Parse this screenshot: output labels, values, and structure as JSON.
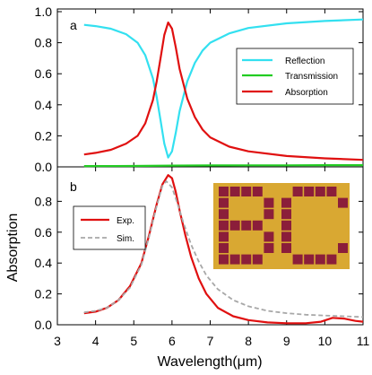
{
  "chart_data": [
    {
      "panel": "a",
      "type": "line",
      "xlim": [
        3,
        11
      ],
      "ylim": [
        0,
        1.0
      ],
      "x_ticks": [
        3,
        4,
        5,
        6,
        7,
        8,
        9,
        10,
        11
      ],
      "y_ticks": [
        "0.0",
        "0.2",
        "0.4",
        "0.6",
        "0.8",
        "1.0"
      ],
      "legend_position": "right",
      "series": [
        {
          "name": "Reflection",
          "color": "#33e0f0",
          "x": [
            3.7,
            4.0,
            4.4,
            4.8,
            5.1,
            5.3,
            5.5,
            5.6,
            5.7,
            5.8,
            5.9,
            6.0,
            6.1,
            6.2,
            6.4,
            6.6,
            6.8,
            7.0,
            7.5,
            8.0,
            9.0,
            10.0,
            11.0
          ],
          "y": [
            0.915,
            0.907,
            0.89,
            0.855,
            0.8,
            0.72,
            0.57,
            0.45,
            0.3,
            0.15,
            0.06,
            0.1,
            0.22,
            0.36,
            0.55,
            0.67,
            0.75,
            0.8,
            0.86,
            0.895,
            0.925,
            0.94,
            0.95
          ]
        },
        {
          "name": "Transmission",
          "color": "#22cc22",
          "x": [
            3.7,
            5.0,
            6.0,
            7.0,
            8.0,
            9.0,
            10.0,
            11.0
          ],
          "y": [
            0.005,
            0.006,
            0.008,
            0.009,
            0.01,
            0.01,
            0.011,
            0.011
          ]
        },
        {
          "name": "Absorption",
          "color": "#e01010",
          "x": [
            3.7,
            4.0,
            4.4,
            4.8,
            5.1,
            5.3,
            5.5,
            5.6,
            5.7,
            5.8,
            5.9,
            6.0,
            6.1,
            6.2,
            6.4,
            6.6,
            6.8,
            7.0,
            7.5,
            8.0,
            9.0,
            10.0,
            11.0
          ],
          "y": [
            0.08,
            0.09,
            0.11,
            0.15,
            0.2,
            0.28,
            0.43,
            0.55,
            0.7,
            0.85,
            0.93,
            0.89,
            0.77,
            0.63,
            0.44,
            0.32,
            0.24,
            0.19,
            0.13,
            0.1,
            0.07,
            0.055,
            0.045
          ]
        }
      ]
    },
    {
      "panel": "b",
      "type": "line",
      "xlim": [
        3,
        11
      ],
      "ylim": [
        0,
        0.95
      ],
      "x_ticks": [
        3,
        4,
        5,
        6,
        7,
        8,
        9,
        10,
        11
      ],
      "y_ticks": [
        "0.0",
        "0.2",
        "0.4",
        "0.6",
        "0.8"
      ],
      "xlabel": "Wavelength(μm)",
      "ylabel": "Absorption",
      "legend_position": "left",
      "series": [
        {
          "name": "Exp.",
          "color": "#e01010",
          "style": "solid",
          "x": [
            3.7,
            4.0,
            4.3,
            4.6,
            4.9,
            5.2,
            5.4,
            5.6,
            5.75,
            5.9,
            6.0,
            6.1,
            6.2,
            6.35,
            6.5,
            6.7,
            6.9,
            7.2,
            7.6,
            8.0,
            8.5,
            9.0,
            9.5,
            9.9,
            10.2,
            10.5,
            10.8,
            11.0
          ],
          "y": [
            0.075,
            0.085,
            0.11,
            0.16,
            0.25,
            0.4,
            0.58,
            0.78,
            0.91,
            0.97,
            0.95,
            0.86,
            0.74,
            0.58,
            0.44,
            0.3,
            0.2,
            0.11,
            0.055,
            0.03,
            0.015,
            0.01,
            0.01,
            0.02,
            0.045,
            0.04,
            0.025,
            0.02
          ]
        },
        {
          "name": "Sim.",
          "color": "#a8a8a8",
          "style": "dashed",
          "x": [
            3.7,
            4.0,
            4.3,
            4.6,
            4.9,
            5.2,
            5.4,
            5.6,
            5.75,
            5.85,
            6.0,
            6.15,
            6.3,
            6.5,
            6.7,
            6.9,
            7.2,
            7.6,
            8.0,
            8.5,
            9.0,
            9.5,
            10.0,
            10.5,
            11.0
          ],
          "y": [
            0.08,
            0.09,
            0.11,
            0.16,
            0.24,
            0.39,
            0.57,
            0.77,
            0.9,
            0.93,
            0.89,
            0.78,
            0.66,
            0.52,
            0.41,
            0.32,
            0.23,
            0.16,
            0.12,
            0.09,
            0.075,
            0.065,
            0.06,
            0.055,
            0.05
          ]
        }
      ]
    }
  ],
  "inset": {
    "background": "#d9a832",
    "square_color": "#8b1e3a"
  }
}
